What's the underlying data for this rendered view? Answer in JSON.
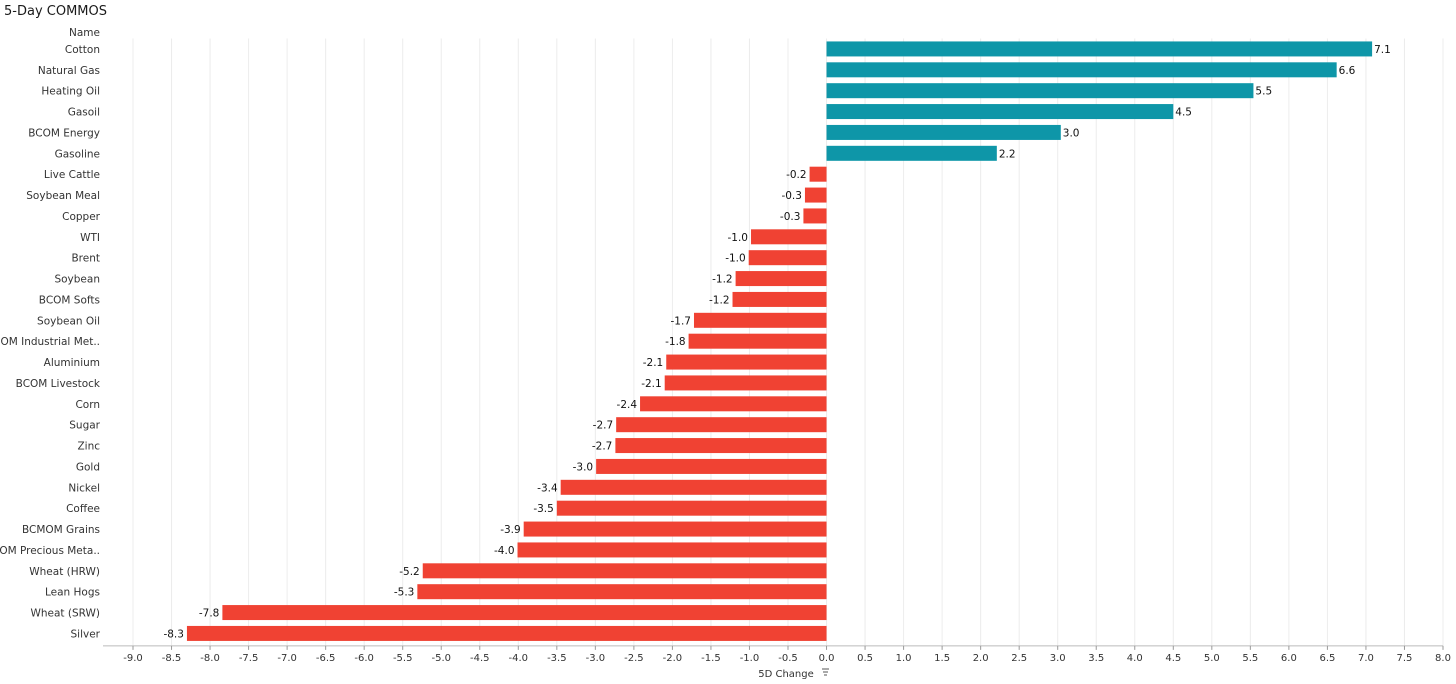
{
  "title": "5-Day COMMOS",
  "chart_data": {
    "type": "bar",
    "orientation": "horizontal",
    "category_header": "Name",
    "xlabel": "5D Change",
    "xlim": [
      -9.0,
      8.0
    ],
    "xticks": [
      "-9.0",
      "-8.5",
      "-8.0",
      "-7.5",
      "-7.0",
      "-6.5",
      "-6.0",
      "-5.5",
      "-5.0",
      "-4.5",
      "-4.0",
      "-3.5",
      "-3.0",
      "-2.5",
      "-2.0",
      "-1.5",
      "-1.0",
      "-0.5",
      "0.0",
      "0.5",
      "1.0",
      "1.5",
      "2.0",
      "2.5",
      "3.0",
      "3.5",
      "4.0",
      "4.5",
      "5.0",
      "5.5",
      "6.0",
      "6.5",
      "7.0",
      "7.5",
      "8.0"
    ],
    "grid": true,
    "categories": [
      "Cotton",
      "Natural Gas",
      "Heating Oil",
      "Gasoil",
      "BCOM Energy",
      "Gasoline",
      "Live Cattle",
      "Soybean Meal",
      "Copper",
      "WTI",
      "Brent",
      "Soybean",
      "BCOM Softs",
      "Soybean Oil",
      "BCOM Industrial Met..",
      "Aluminium",
      "BCOM Livestock",
      "Corn",
      "Sugar",
      "Zinc",
      "Gold",
      "Nickel",
      "Coffee",
      "BCMOM Grains",
      "BCOM Precious Meta..",
      "Wheat (HRW)",
      "Lean Hogs",
      "Wheat (SRW)",
      "Silver"
    ],
    "values": [
      7.08,
      6.62,
      5.54,
      4.5,
      3.04,
      2.21,
      -0.22,
      -0.28,
      -0.3,
      -0.98,
      -1.01,
      -1.18,
      -1.22,
      -1.72,
      -1.79,
      -2.08,
      -2.1,
      -2.42,
      -2.73,
      -2.74,
      -2.99,
      -3.45,
      -3.5,
      -3.93,
      -4.01,
      -5.24,
      -5.31,
      -7.84,
      -8.3
    ],
    "value_labels": [
      "7.1",
      "6.6",
      "5.5",
      "4.5",
      "3.0",
      "2.2",
      "-0.2",
      "-0.3",
      "-0.3",
      "-1.0",
      "-1.0",
      "-1.2",
      "-1.2",
      "-1.7",
      "-1.8",
      "-2.1",
      "-2.1",
      "-2.4",
      "-2.7",
      "-2.7",
      "-3.0",
      "-3.4",
      "-3.5",
      "-3.9",
      "-4.0",
      "-5.2",
      "-5.3",
      "-7.8",
      "-8.3"
    ],
    "positive_color": "#0e96a8",
    "negative_color": "#f04233"
  }
}
